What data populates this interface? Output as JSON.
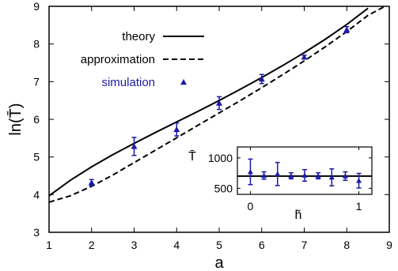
{
  "chart_data": [
    {
      "type": "line",
      "xlabel": "a",
      "ylabel": "ln(T̄)",
      "xlim": [
        1,
        9
      ],
      "ylim": [
        3,
        9
      ],
      "xticks": [
        "1",
        "2",
        "3",
        "4",
        "5",
        "6",
        "7",
        "8",
        "9"
      ],
      "yticks": [
        "3",
        "4",
        "5",
        "6",
        "7",
        "8",
        "9"
      ],
      "legend": {
        "placement": "top-left"
      },
      "series": [
        {
          "name": "theory",
          "style": "solid",
          "color": "#000000",
          "x": [
            1,
            1.5,
            2,
            2.5,
            3,
            3.5,
            4,
            4.5,
            5,
            5.5,
            6,
            6.5,
            7,
            7.5,
            8,
            8.5
          ],
          "y": [
            3.97,
            4.38,
            4.74,
            5.06,
            5.36,
            5.65,
            5.93,
            6.21,
            6.5,
            6.8,
            7.11,
            7.43,
            7.77,
            8.13,
            8.52,
            8.95
          ]
        },
        {
          "name": "approximation",
          "style": "dashed",
          "color": "#000000",
          "x": [
            1,
            1.5,
            2,
            2.5,
            3,
            3.5,
            4,
            4.5,
            5,
            5.5,
            6,
            6.5,
            7,
            7.5,
            8,
            8.5,
            8.9
          ],
          "y": [
            3.8,
            3.97,
            4.22,
            4.52,
            4.85,
            5.18,
            5.51,
            5.84,
            6.17,
            6.5,
            6.84,
            7.19,
            7.55,
            7.93,
            8.33,
            8.76,
            9.0
          ]
        },
        {
          "name": "simulation",
          "style": "markers",
          "color": "#1a1aa6",
          "x": [
            2,
            3,
            4,
            5,
            6,
            7,
            8
          ],
          "y": [
            4.32,
            5.28,
            5.73,
            6.43,
            7.07,
            7.65,
            8.38
          ],
          "yerr": [
            0.08,
            0.24,
            0.17,
            0.17,
            0.12,
            0.05,
            0.08
          ]
        }
      ]
    },
    {
      "type": "scatter",
      "role": "inset",
      "xlabel": "h̃",
      "ylabel": "T̄",
      "xlim": [
        -0.12,
        1.12
      ],
      "ylim": [
        400,
        1180
      ],
      "xticks": [
        "0",
        "1"
      ],
      "yticks": [
        "500",
        "1000"
      ],
      "reference_line": {
        "y": 700,
        "style": "solid",
        "color": "#000000"
      },
      "series": [
        {
          "name": "",
          "color": "#1a1aa6",
          "x": [
            0.0,
            0.25,
            0.5,
            0.75,
            1.0
          ],
          "y": [
            770,
            735,
            712,
            680,
            625
          ],
          "yerr": [
            210,
            190,
            95,
            140,
            120
          ]
        }
      ],
      "extra_points": {
        "x": [
          0.125,
          0.375,
          0.625,
          0.875
        ],
        "y": [
          710,
          705,
          705,
          700
        ],
        "yerr": [
          60,
          50,
          50,
          70
        ]
      }
    }
  ]
}
